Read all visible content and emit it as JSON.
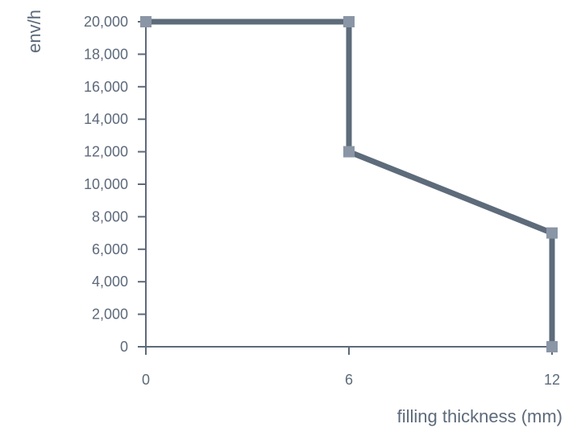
{
  "chart_data": {
    "type": "line",
    "title": "",
    "xlabel": "filling thickness (mm)",
    "ylabel": "env/h",
    "x_ticks": [
      0,
      6,
      12
    ],
    "y_ticks": [
      0,
      2000,
      4000,
      6000,
      8000,
      10000,
      12000,
      14000,
      16000,
      18000,
      20000
    ],
    "x_tick_labels": [
      "0",
      "6",
      "12"
    ],
    "y_tick_labels": [
      "0",
      "2,000",
      "4,000",
      "6,000",
      "8,000",
      "10,000",
      "12,000",
      "14,000",
      "16,000",
      "18,000",
      "20,000"
    ],
    "xlim": [
      0,
      12
    ],
    "ylim": [
      0,
      20000
    ],
    "grid": false,
    "series": [
      {
        "x": [
          0,
          6,
          6,
          12,
          12
        ],
        "y": [
          20000,
          20000,
          12000,
          7000,
          0
        ]
      }
    ],
    "colors": {
      "line": "#5d6b7a",
      "marker": "#8a96a6",
      "axis": "#5d6a7a",
      "text": "#5d6a7a"
    }
  }
}
